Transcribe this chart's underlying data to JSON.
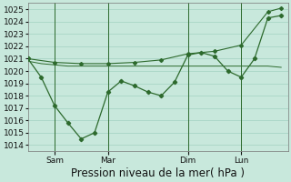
{
  "background_color": "#c8e8dc",
  "grid_color": "#99ccbb",
  "line_color": "#2d6a2d",
  "marker_color": "#2d6a2d",
  "xlabel": "Pression niveau de la mer( hPa )",
  "ylim": [
    1013.5,
    1025.5
  ],
  "yticks": [
    1014,
    1015,
    1016,
    1017,
    1018,
    1019,
    1020,
    1021,
    1022,
    1023,
    1024,
    1025
  ],
  "xtick_labels": [
    "Sam",
    "Mar",
    "Dim",
    "Lun"
  ],
  "xtick_positions": [
    16,
    48,
    96,
    128
  ],
  "xlim": [
    0,
    156
  ],
  "vline_positions": [
    16,
    48,
    96,
    128
  ],
  "series_flat_x": [
    0,
    8,
    16,
    24,
    32,
    40,
    48,
    56,
    64,
    72,
    80,
    88,
    96,
    104,
    112,
    120,
    128,
    136,
    144,
    152
  ],
  "series_flat_y": [
    1020.8,
    1020.6,
    1020.5,
    1020.4,
    1020.4,
    1020.4,
    1020.4,
    1020.4,
    1020.4,
    1020.4,
    1020.4,
    1020.4,
    1020.4,
    1020.4,
    1020.4,
    1020.4,
    1020.4,
    1020.4,
    1020.4,
    1020.3
  ],
  "series_dip_x": [
    0,
    8,
    16,
    24,
    32,
    40,
    48,
    56,
    64,
    72,
    80,
    88,
    96,
    104,
    112,
    120,
    128,
    136,
    144,
    152
  ],
  "series_dip_y": [
    1021.0,
    1019.5,
    1017.2,
    1015.8,
    1014.5,
    1015.0,
    1018.3,
    1019.2,
    1018.8,
    1018.3,
    1018.0,
    1019.1,
    1021.3,
    1021.5,
    1021.2,
    1020.0,
    1019.5,
    1021.0,
    1024.3,
    1024.5
  ],
  "series_trend_x": [
    0,
    16,
    32,
    48,
    64,
    80,
    96,
    112,
    128,
    144,
    152
  ],
  "series_trend_y": [
    1021.0,
    1020.7,
    1020.6,
    1020.6,
    1020.7,
    1020.9,
    1021.4,
    1021.6,
    1022.1,
    1024.8,
    1025.1
  ],
  "xlabel_fontsize": 8.5,
  "tick_fontsize": 6.5
}
